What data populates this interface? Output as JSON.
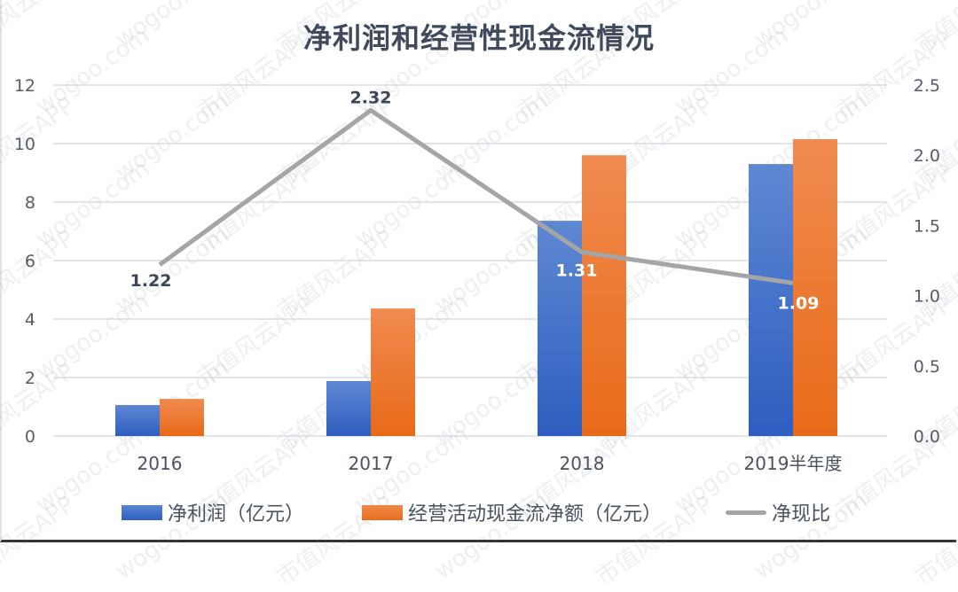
{
  "chart_data": {
    "type": "bar+line",
    "title": "净利润和经营性现金流情况",
    "categories": [
      "2016",
      "2017",
      "2018",
      "2019半年度"
    ],
    "series": [
      {
        "name": "净利润（亿元）",
        "type": "bar",
        "axis": "left",
        "color": "#4472c4",
        "values": [
          1.06,
          1.88,
          7.36,
          9.3
        ]
      },
      {
        "name": "经营活动现金流净额（亿元）",
        "type": "bar",
        "axis": "left",
        "color": "#ed7d31",
        "values": [
          1.27,
          4.36,
          9.6,
          10.15
        ]
      },
      {
        "name": "净现比",
        "type": "line",
        "axis": "right",
        "color": "#a5a5a5",
        "values": [
          1.22,
          2.32,
          1.31,
          1.09
        ],
        "labels": [
          "1.22",
          "2.32",
          "1.31",
          "1.09"
        ]
      }
    ],
    "left_axis": {
      "ticks": [
        "0",
        "2",
        "4",
        "6",
        "8",
        "10",
        "12"
      ],
      "ylim": [
        0,
        12
      ]
    },
    "right_axis": {
      "ticks": [
        "0.0",
        "0.5",
        "1.0",
        "1.5",
        "2.0",
        "2.5"
      ],
      "ylim": [
        0,
        2.5
      ]
    },
    "grid": true,
    "legend_position": "bottom"
  },
  "legend": {
    "items": [
      {
        "label": "净利润（亿元）"
      },
      {
        "label": "经营活动现金流净额（亿元）"
      },
      {
        "label": "净现比"
      }
    ]
  },
  "watermark": {
    "text_cn": "市值风云APP",
    "text_url": "wogoo.com"
  }
}
